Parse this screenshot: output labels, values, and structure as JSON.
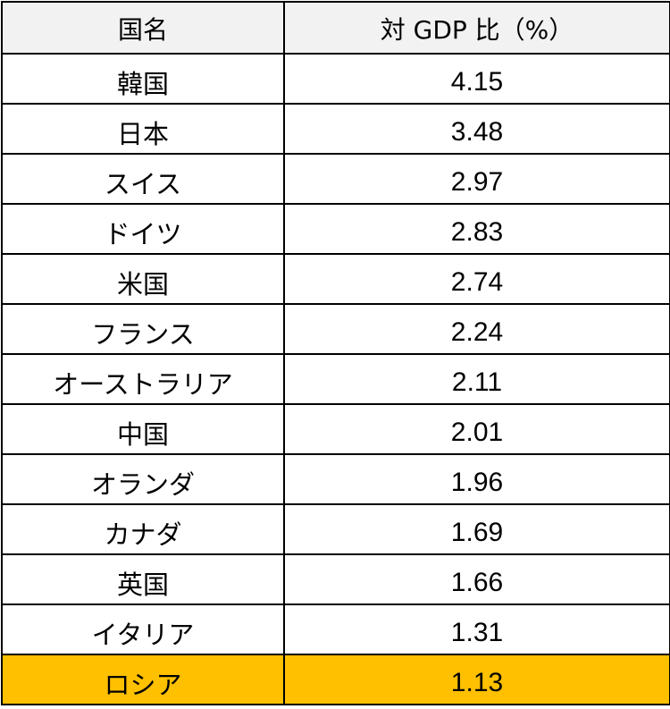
{
  "chart_data": {
    "type": "table",
    "columns": [
      "国名",
      "対 GDP 比（%）"
    ],
    "rows": [
      [
        "韓国",
        "4.15"
      ],
      [
        "日本",
        "3.48"
      ],
      [
        "スイス",
        "2.97"
      ],
      [
        "ドイツ",
        "2.83"
      ],
      [
        "米国",
        "2.74"
      ],
      [
        "フランス",
        "2.24"
      ],
      [
        "オーストラリア",
        "2.11"
      ],
      [
        "中国",
        "2.01"
      ],
      [
        "オランダ",
        "1.96"
      ],
      [
        "カナダ",
        "1.69"
      ],
      [
        "英国",
        "1.66"
      ],
      [
        "イタリア",
        "1.31"
      ],
      [
        "ロシア",
        "1.13"
      ]
    ],
    "highlight_row": 12,
    "colors": {
      "header_bg": "#f2f2f2",
      "highlight_bg": "#ffc000",
      "border": "#000000"
    }
  }
}
